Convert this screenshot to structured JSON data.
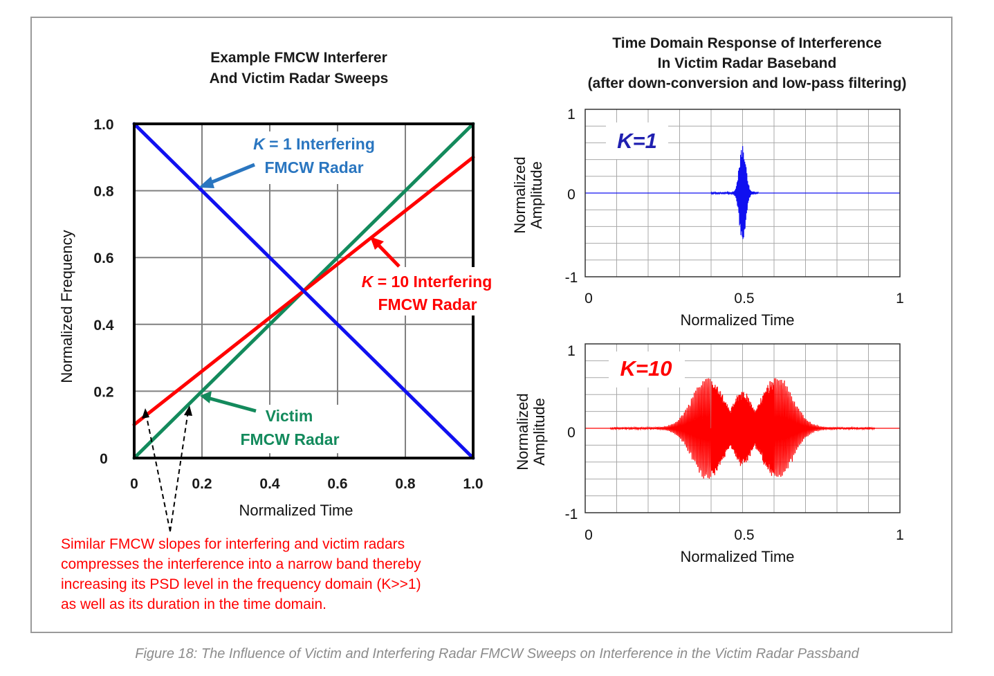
{
  "caption": "Figure 18: The Influence of Victim and Interfering Radar FMCW Sweeps on Interference in the Victim Radar Passband",
  "note_lines": [
    "Similar FMCW slopes for interfering and victim radars",
    "compresses the interference into a narrow band thereby",
    "increasing its PSD level in the frequency domain (K>>1)",
    "as well as its duration in the time domain."
  ],
  "colors": {
    "k1": "#1010f0",
    "k10": "#ff0000",
    "victim": "#138a5c",
    "k1_label": "#2a76c0",
    "victim_label": "#138a5c",
    "k1_box": "#2020b0",
    "note": "#ff0000",
    "grid": "#a0a0a0"
  },
  "chart_data": [
    {
      "id": "sweeps",
      "type": "line",
      "title_lines": [
        "Example FMCW Interferer",
        "And Victim Radar Sweeps"
      ],
      "xlabel": "Normalized Time",
      "ylabel": "Normalized Frequency",
      "xlim": [
        0,
        1.0
      ],
      "ylim": [
        0,
        1.0
      ],
      "grid": true,
      "xticks": [
        0,
        0.2,
        0.4,
        0.6,
        0.8,
        1.0
      ],
      "xtick_labels": [
        "0",
        "0.2",
        "0.4",
        "0.6",
        "0.8",
        "1.0"
      ],
      "yticks": [
        0,
        0.2,
        0.4,
        0.6,
        0.8,
        1.0
      ],
      "ytick_labels": [
        "0",
        "0.2",
        "0.4",
        "0.6",
        "0.8",
        "1.0"
      ],
      "series": [
        {
          "name": "K = 1 Interfering FMCW Radar",
          "color_key": "k1",
          "x": [
            0,
            1.0
          ],
          "y": [
            1.0,
            0
          ]
        },
        {
          "name": "K = 10 Interfering FMCW Radar",
          "color_key": "k10",
          "x": [
            0,
            1.0
          ],
          "y": [
            0.1,
            0.9
          ]
        },
        {
          "name": "Victim FMCW Radar",
          "color_key": "victim",
          "x": [
            0,
            1.0
          ],
          "y": [
            0,
            1.0
          ]
        }
      ],
      "annotations": {
        "k1": {
          "prefix": "K",
          "rest": " = 1 Interfering",
          "line2": "FMCW Radar"
        },
        "k10": {
          "prefix": "K",
          "rest": " = 10 Interfering",
          "line2": "FMCW Radar"
        },
        "victim": {
          "line1": "Victim",
          "line2": "FMCW Radar"
        }
      }
    },
    {
      "id": "k1_response",
      "type": "line",
      "title_lines": [
        "Time Domain Response of Interference",
        "In Victim Radar Baseband",
        "(after down-conversion and low-pass filtering)"
      ],
      "label": "K=1",
      "color_key": "k1",
      "xlabel": "Normalized Time",
      "ylabel_lines": [
        "Normalized",
        "Amplitude"
      ],
      "xlim": [
        0,
        1
      ],
      "ylim": [
        -1,
        1
      ],
      "xtick_labels": [
        "0",
        "0.5",
        "1"
      ],
      "ytick_labels": [
        "1",
        "0",
        "-1"
      ],
      "signal": {
        "center": 0.5,
        "envelope_width": 0.018,
        "amplitude": 0.6,
        "cycles_per_unit": 450,
        "noise_floor_start": 0.4,
        "noise_floor_end": 0.55
      }
    },
    {
      "id": "k10_response",
      "type": "line",
      "label": "K=10",
      "color_key": "k10",
      "xlabel": "Normalized Time",
      "ylabel_lines": [
        "Normalized",
        "Amplitude"
      ],
      "xlim": [
        0,
        1
      ],
      "ylim": [
        -1,
        1
      ],
      "xtick_labels": [
        "0",
        "0.5",
        "1"
      ],
      "ytick_labels": [
        "1",
        "0",
        "-1"
      ],
      "signal": {
        "lobe_centers": [
          0.39,
          0.61
        ],
        "lobe_width": 0.07,
        "amplitude": 0.62,
        "center_dip": 0.5,
        "cycles_per_unit": 220,
        "span": [
          0.22,
          0.78
        ]
      }
    }
  ]
}
